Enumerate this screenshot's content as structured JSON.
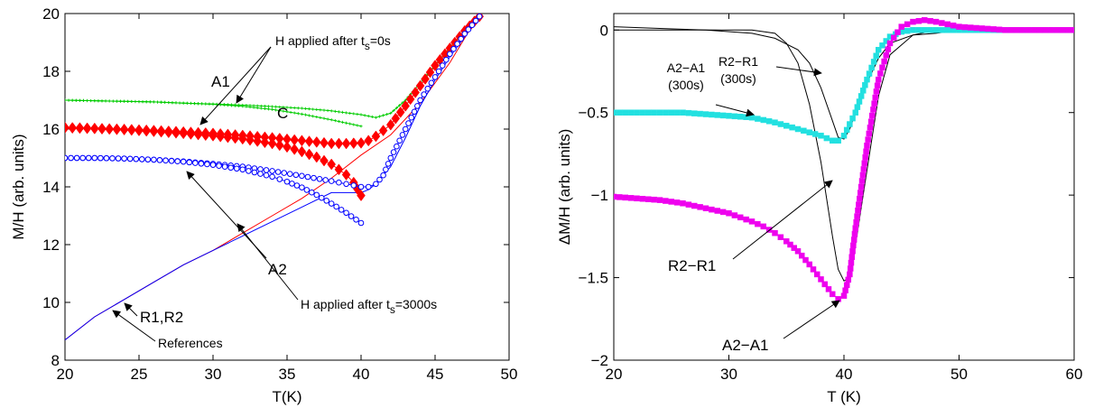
{
  "chart_data": [
    {
      "type": "line",
      "xlabel": "T(K)",
      "ylabel": "M/H (arb. units)",
      "xlim": [
        20,
        50
      ],
      "ylim": [
        8,
        20
      ],
      "xticks": [
        "20",
        "25",
        "30",
        "35",
        "40",
        "45",
        "50"
      ],
      "yticks": [
        "8",
        "10",
        "12",
        "14",
        "16",
        "18",
        "20"
      ],
      "colors": {
        "red": "#ff0000",
        "blue": "#0000ff",
        "green": "#00cc00",
        "axes": "#000000"
      },
      "series": [
        {
          "color": "#ff0000",
          "style": "line",
          "x": [
            20,
            22,
            24,
            26,
            28,
            30,
            32,
            34,
            36,
            38,
            40,
            42,
            44,
            46,
            48
          ],
          "y": [
            8.7,
            9.5,
            10.1,
            10.7,
            11.3,
            11.8,
            12.4,
            13.0,
            13.6,
            14.3,
            15.1,
            15.8,
            16.9,
            18.3,
            20.0
          ]
        },
        {
          "color": "#0000ff",
          "style": "line",
          "x": [
            20,
            22,
            24,
            26,
            28,
            30,
            32,
            34,
            36,
            38,
            40,
            40.5,
            41,
            42,
            43,
            44,
            45,
            46,
            47,
            48
          ],
          "y": [
            8.7,
            9.5,
            10.1,
            10.7,
            11.3,
            11.8,
            12.3,
            12.8,
            13.3,
            13.8,
            13.8,
            13.9,
            14.1,
            14.7,
            15.7,
            16.8,
            17.7,
            18.5,
            19.2,
            19.9
          ]
        },
        {
          "color": "#00cc00",
          "style": "line-plus",
          "x": [
            20,
            22,
            24,
            26,
            28,
            30,
            32,
            34,
            36,
            38,
            40,
            41,
            42,
            43,
            44,
            45,
            46,
            47,
            48
          ],
          "y": [
            17.0,
            16.98,
            16.96,
            16.94,
            16.9,
            16.87,
            16.83,
            16.78,
            16.72,
            16.63,
            16.5,
            16.4,
            16.55,
            17.0,
            17.6,
            18.2,
            18.8,
            19.4,
            19.9
          ]
        },
        {
          "color": "#00cc00",
          "style": "line-plus",
          "x": [
            20,
            22,
            24,
            26,
            28,
            30,
            32,
            34,
            36,
            38,
            40
          ],
          "y": [
            17.0,
            16.98,
            16.96,
            16.94,
            16.9,
            16.86,
            16.79,
            16.68,
            16.52,
            16.32,
            16.1
          ]
        },
        {
          "color": "#ff0000",
          "style": "diamond",
          "x": [
            20,
            22,
            24,
            26,
            28,
            30,
            32,
            34,
            36,
            37,
            38,
            39,
            40,
            40.5,
            41,
            42,
            43,
            44,
            45,
            46,
            47,
            48
          ],
          "y": [
            16.05,
            16.02,
            15.99,
            15.95,
            15.9,
            15.85,
            15.78,
            15.7,
            15.6,
            15.55,
            15.5,
            15.5,
            15.52,
            15.6,
            15.75,
            16.15,
            16.8,
            17.5,
            18.2,
            18.8,
            19.4,
            19.9
          ]
        },
        {
          "color": "#ff0000",
          "style": "diamond",
          "x": [
            20,
            22,
            24,
            26,
            28,
            30,
            32,
            34,
            35,
            36,
            37,
            38,
            39,
            39.5,
            40
          ],
          "y": [
            16.05,
            16.02,
            15.98,
            15.92,
            15.85,
            15.77,
            15.66,
            15.5,
            15.38,
            15.22,
            15.03,
            14.78,
            14.42,
            14.15,
            13.7
          ]
        },
        {
          "color": "#0000ff",
          "style": "circle",
          "x": [
            20,
            22,
            24,
            26,
            28,
            30,
            32,
            34,
            36,
            38,
            39,
            40,
            40.5,
            41,
            41.5,
            42,
            43,
            44,
            45,
            46,
            47,
            48
          ],
          "y": [
            15.0,
            15.0,
            14.98,
            14.94,
            14.88,
            14.8,
            14.7,
            14.55,
            14.38,
            14.2,
            14.1,
            14.0,
            14.0,
            14.1,
            14.4,
            15.0,
            16.0,
            17.0,
            17.8,
            18.6,
            19.3,
            19.9
          ]
        },
        {
          "color": "#0000ff",
          "style": "circle",
          "x": [
            20,
            22,
            24,
            26,
            28,
            30,
            32,
            34,
            35,
            36,
            37,
            38,
            39,
            40
          ],
          "y": [
            15.0,
            15.0,
            14.98,
            14.94,
            14.87,
            14.76,
            14.6,
            14.35,
            14.18,
            13.98,
            13.72,
            13.42,
            13.1,
            12.75
          ]
        }
      ],
      "annotations": [
        {
          "text": "H applied after t",
          "sub": "s",
          "suffix": "=0s"
        },
        {
          "text": "A1"
        },
        {
          "text": "C"
        },
        {
          "text": "A2"
        },
        {
          "text": "H applied after t",
          "sub": "s",
          "suffix": "=3000s"
        },
        {
          "text": "R1,R2"
        },
        {
          "text": "References"
        }
      ]
    },
    {
      "type": "line",
      "xlabel": "T (K)",
      "ylabel": "ΔM/H (arb. units)",
      "xlim": [
        20,
        60
      ],
      "ylim": [
        -2,
        0.1
      ],
      "xticks": [
        "20",
        "30",
        "40",
        "50",
        "60"
      ],
      "yticks": [
        "0",
        "−0.5",
        "−1",
        "−1.5",
        "−2"
      ],
      "colors": {
        "black": "#000000",
        "cyan": "#22e0e0",
        "magenta": "#ee00ee"
      },
      "series": [
        {
          "name": "R2−R1 (300s)",
          "color": "#000000",
          "style": "line",
          "x": [
            20,
            24,
            28,
            32,
            34,
            36,
            37,
            38,
            39,
            39.5,
            40,
            40.5,
            41,
            42,
            43,
            44,
            46,
            48,
            50,
            55,
            60
          ],
          "y": [
            0.02,
            0.01,
            0.0,
            -0.02,
            -0.05,
            -0.12,
            -0.2,
            -0.35,
            -0.55,
            -0.65,
            -0.66,
            -0.6,
            -0.5,
            -0.32,
            -0.17,
            -0.08,
            -0.03,
            -0.02,
            0.0,
            0.0,
            0.0
          ]
        },
        {
          "name": "R2−R1",
          "color": "#000000",
          "style": "line",
          "x": [
            20,
            24,
            28,
            32,
            34,
            35,
            36,
            37,
            38,
            39,
            39.5,
            40,
            40.5,
            41,
            42,
            43,
            44,
            46,
            48,
            50,
            55,
            60
          ],
          "y": [
            0.0,
            0.0,
            0.0,
            0.0,
            -0.02,
            -0.08,
            -0.2,
            -0.45,
            -0.8,
            -1.25,
            -1.45,
            -1.52,
            -1.5,
            -1.3,
            -0.85,
            -0.4,
            -0.15,
            -0.03,
            0.0,
            0.0,
            0.0,
            0.0
          ]
        },
        {
          "name": "A2−A1 (300s)",
          "color": "#22e0e0",
          "style": "square",
          "x": [
            20,
            22,
            24,
            26,
            28,
            30,
            32,
            34,
            35,
            36,
            37,
            38,
            39,
            39.5,
            40,
            41,
            42,
            43,
            44,
            45,
            46,
            48,
            50,
            52,
            54,
            56,
            58,
            60
          ],
          "y": [
            -0.5,
            -0.5,
            -0.5,
            -0.5,
            -0.51,
            -0.52,
            -0.53,
            -0.56,
            -0.58,
            -0.6,
            -0.62,
            -0.64,
            -0.67,
            -0.67,
            -0.64,
            -0.5,
            -0.3,
            -0.12,
            -0.04,
            -0.01,
            0.0,
            0.0,
            0.0,
            0.0,
            0.0,
            0.0,
            0.0,
            0.0
          ]
        },
        {
          "name": "A2−A1",
          "color": "#ee00ee",
          "style": "square",
          "x": [
            20,
            22,
            24,
            26,
            28,
            30,
            32,
            33,
            34,
            35,
            36,
            37,
            38,
            39,
            39.5,
            40,
            40.5,
            41,
            42,
            43,
            44,
            45,
            46,
            47,
            48,
            50,
            52,
            54,
            56,
            58,
            60
          ],
          "y": [
            -1.01,
            -1.02,
            -1.03,
            -1.05,
            -1.08,
            -1.11,
            -1.16,
            -1.19,
            -1.23,
            -1.28,
            -1.34,
            -1.42,
            -1.51,
            -1.6,
            -1.63,
            -1.61,
            -1.48,
            -1.2,
            -0.7,
            -0.3,
            -0.08,
            0.02,
            0.05,
            0.06,
            0.05,
            0.02,
            0.01,
            0.0,
            0.0,
            0.0,
            0.0
          ]
        }
      ],
      "annotations": [
        {
          "text": "A2−A1"
        },
        {
          "text": "(300s)"
        },
        {
          "text": "R2−R1"
        },
        {
          "text": "(300s)"
        },
        {
          "text": "R2−R1"
        },
        {
          "text": "A2−A1"
        }
      ]
    }
  ]
}
